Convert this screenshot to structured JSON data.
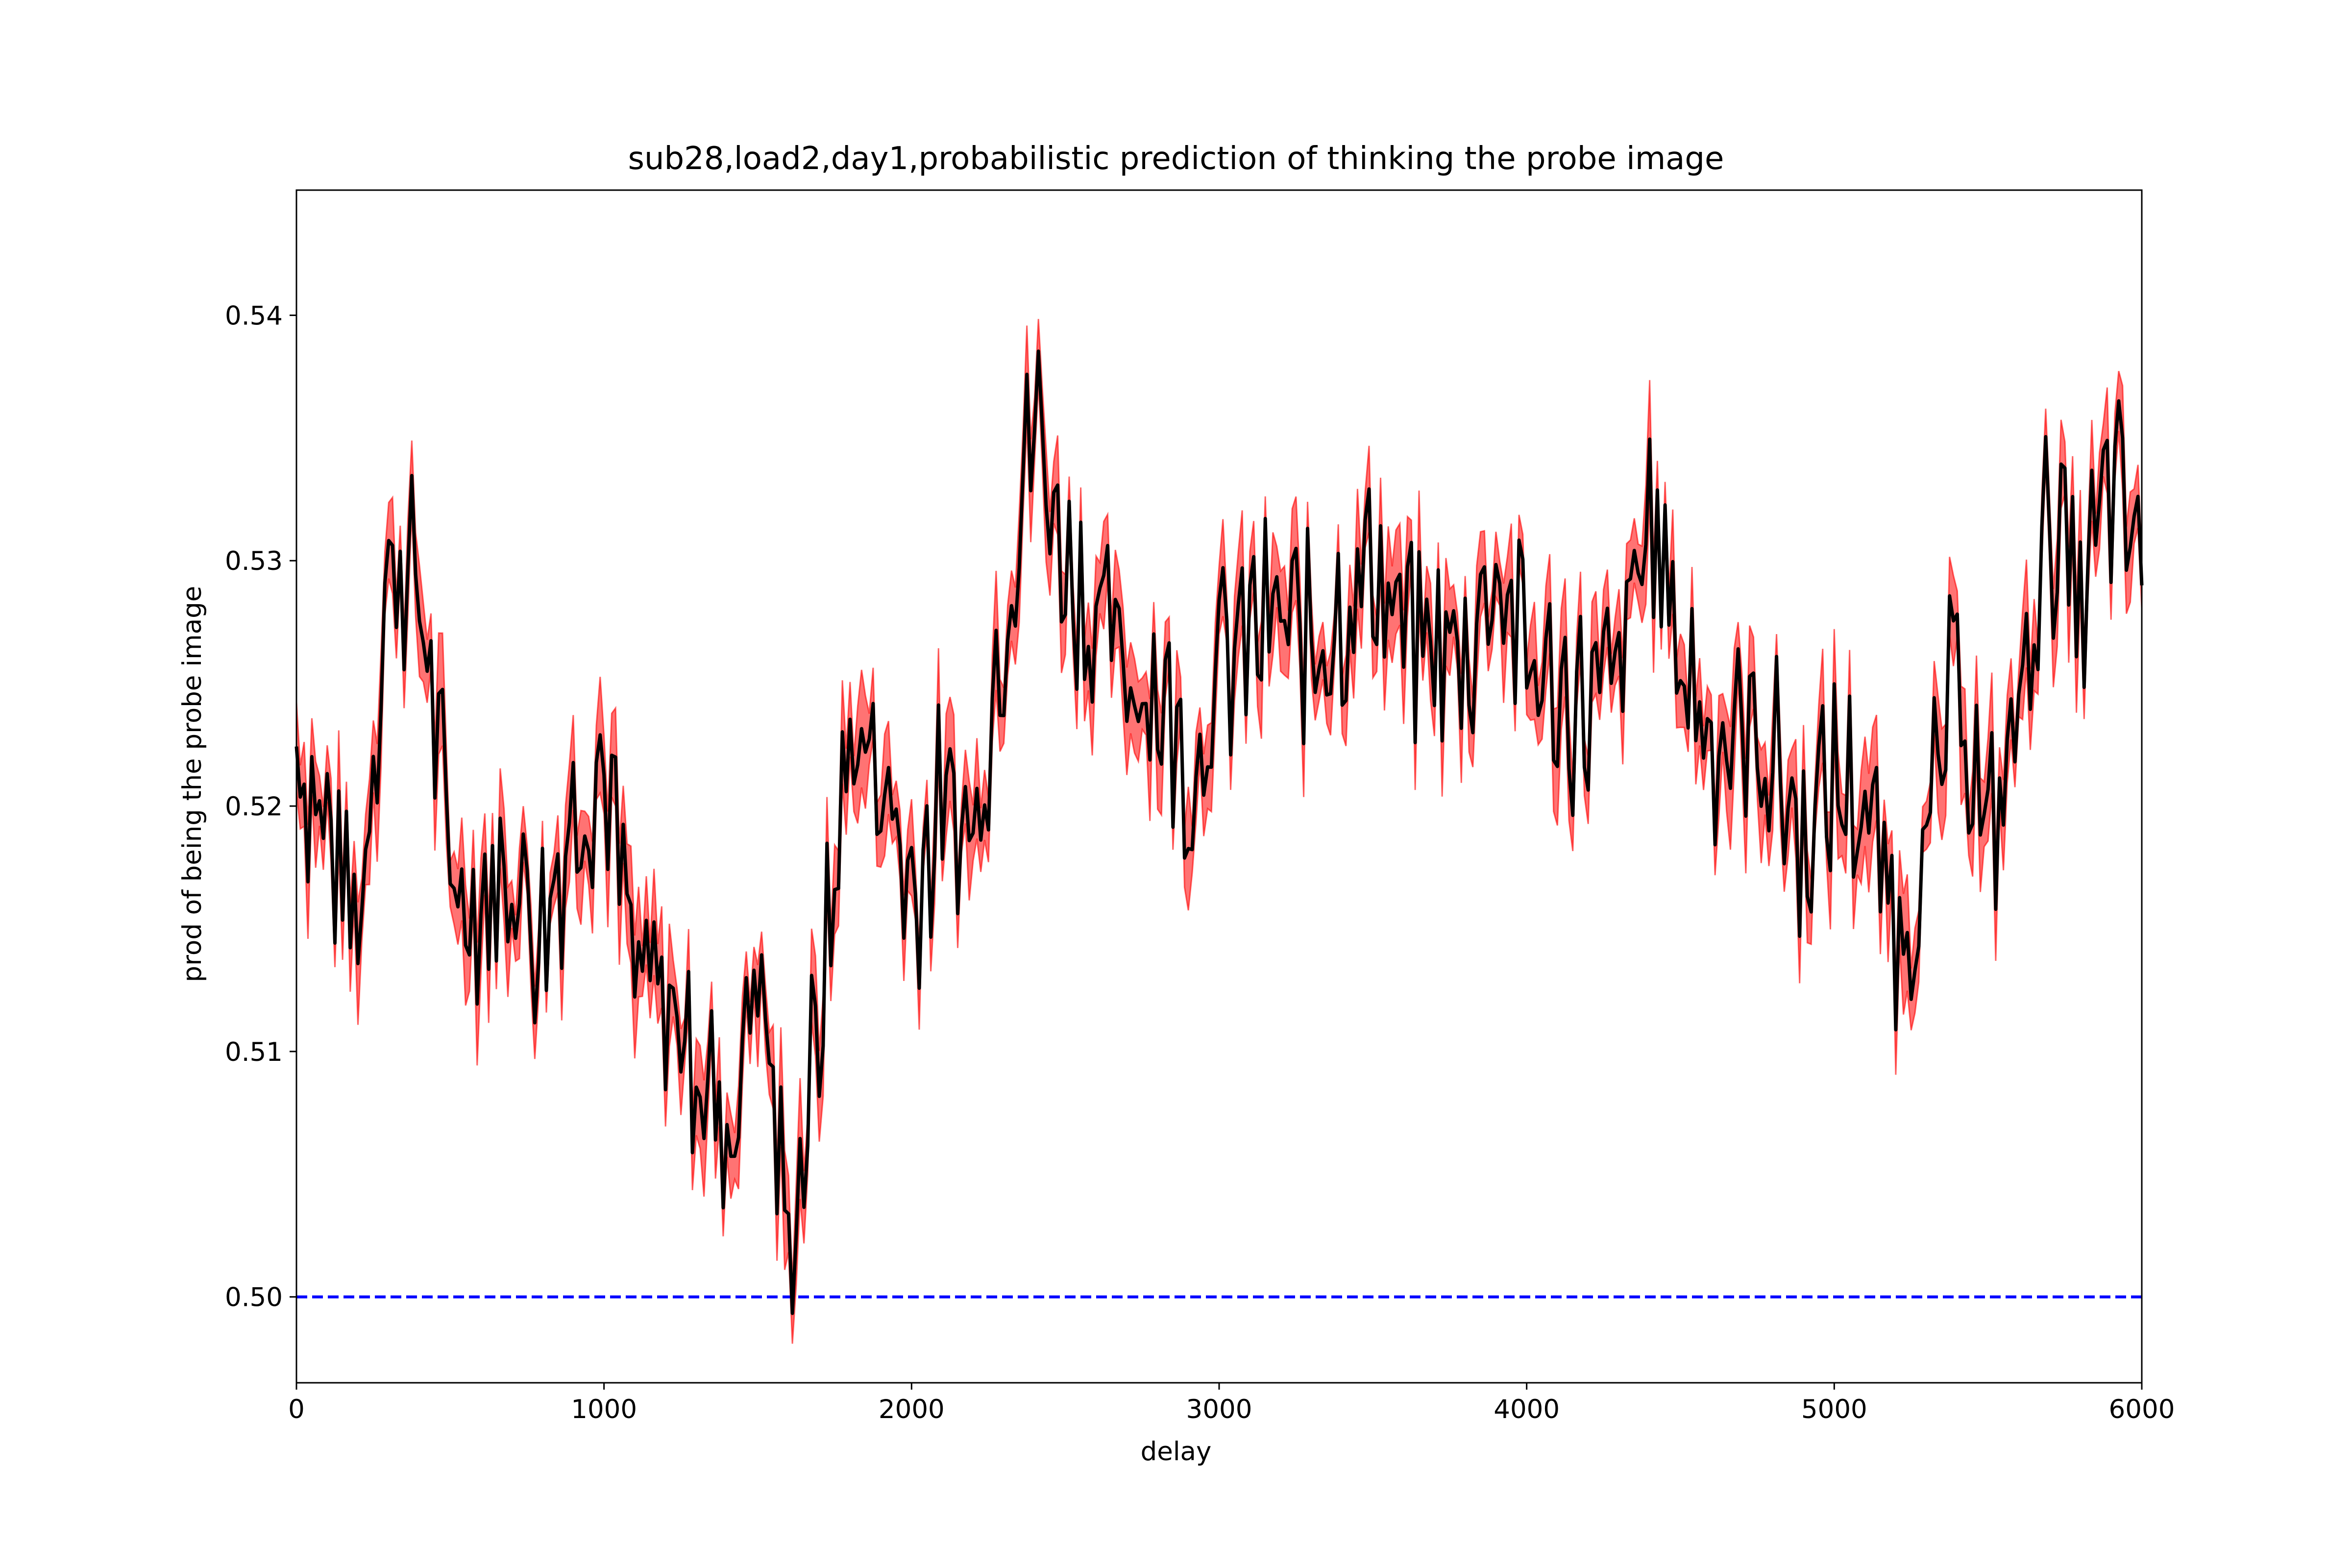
{
  "chart_data": {
    "type": "line",
    "title": "sub28,load2,day1,probabilistic prediction of thinking the probe image",
    "xlabel": "delay",
    "ylabel": "prod of being the probe image",
    "xlim": [
      0,
      6000
    ],
    "ylim": [
      0.4965,
      0.5451
    ],
    "xticks": [
      0,
      1000,
      2000,
      3000,
      4000,
      5000,
      6000
    ],
    "xtick_labels": [
      "0",
      "1000",
      "2000",
      "3000",
      "4000",
      "5000",
      "6000"
    ],
    "yticks": [
      0.5,
      0.51,
      0.52,
      0.53,
      0.54
    ],
    "ytick_labels": [
      "0.50",
      "0.51",
      "0.52",
      "0.53",
      "0.54"
    ],
    "grid": false,
    "legend": "none",
    "colors": {
      "mean_line": "#000000",
      "band": "#ff0000",
      "reference": "#0000ff"
    },
    "series": [
      {
        "style": "mean-line-with-shaded-band",
        "x": [
          0,
          100,
          200,
          300,
          400,
          500,
          600,
          700,
          800,
          900,
          1000,
          1100,
          1200,
          1300,
          1400,
          1500,
          1600,
          1700,
          1800,
          1900,
          2000,
          2100,
          2200,
          2300,
          2400,
          2500,
          2600,
          2700,
          2800,
          2900,
          3000,
          3100,
          3200,
          3300,
          3400,
          3500,
          3600,
          3700,
          3800,
          3900,
          4000,
          4100,
          4200,
          4300,
          4400,
          4500,
          4600,
          4700,
          4800,
          4900,
          5000,
          5100,
          5200,
          5300,
          5400,
          5500,
          5600,
          5700,
          5800,
          5900,
          6000
        ],
        "y": [
          0.5225,
          0.519,
          0.515,
          0.53,
          0.529,
          0.5175,
          0.516,
          0.5175,
          0.515,
          0.52,
          0.522,
          0.513,
          0.512,
          0.51,
          0.506,
          0.514,
          0.502,
          0.511,
          0.523,
          0.5215,
          0.5165,
          0.52,
          0.519,
          0.528,
          0.536,
          0.53,
          0.5275,
          0.5255,
          0.525,
          0.521,
          0.5255,
          0.527,
          0.5275,
          0.5265,
          0.528,
          0.53,
          0.527,
          0.5265,
          0.526,
          0.53,
          0.526,
          0.5245,
          0.524,
          0.525,
          0.532,
          0.526,
          0.523,
          0.523,
          0.522,
          0.5185,
          0.521,
          0.52,
          0.515,
          0.5175,
          0.526,
          0.518,
          0.524,
          0.532,
          0.528,
          0.533,
          0.53
        ],
        "band_halfwidth": 0.0018
      },
      {
        "style": "dashed-reference",
        "x": [
          0,
          6000
        ],
        "y": [
          0.5,
          0.5
        ]
      }
    ]
  }
}
